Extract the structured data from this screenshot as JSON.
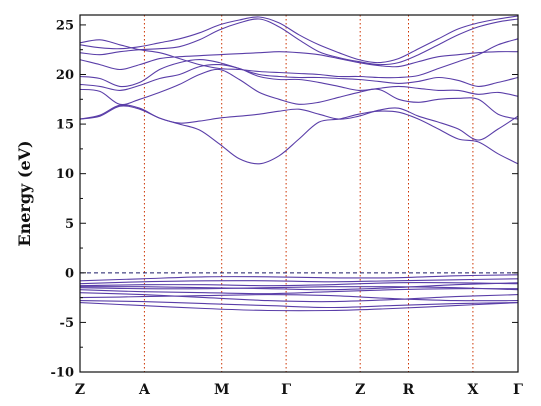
{
  "chart_data": {
    "type": "line",
    "title": "",
    "ylabel": "Energy (eV)",
    "xlabel": "",
    "ylim": [
      -10,
      26
    ],
    "yticks": [
      -10,
      -5,
      0,
      5,
      10,
      15,
      20,
      25
    ],
    "fermi_level": 0,
    "grid": false,
    "k_points": [
      "Z",
      "A",
      "M",
      "Γ",
      "Z",
      "R",
      "X",
      "Γ"
    ],
    "k_positions": [
      0,
      1,
      2.2,
      3.2,
      4.35,
      5.1,
      6.1,
      6.8
    ],
    "series": [
      {
        "values": [
          -3.0,
          -3.3,
          -3.6,
          -3.8,
          -3.8,
          -3.6,
          -3.3,
          -3.0
        ]
      },
      {
        "values": [
          -2.8,
          -2.9,
          -3.1,
          -3.3,
          -3.5,
          -3.3,
          -3.1,
          -3.0
        ]
      },
      {
        "values": [
          -2.5,
          -2.4,
          -2.3,
          -2.2,
          -2.3,
          -2.6,
          -2.8,
          -2.8
        ]
      },
      {
        "values": [
          -2.0,
          -2.2,
          -2.5,
          -2.8,
          -2.9,
          -2.7,
          -2.4,
          -2.2
        ]
      },
      {
        "values": [
          -1.7,
          -1.9,
          -2.0,
          -2.1,
          -1.9,
          -1.7,
          -1.6,
          -1.6
        ]
      },
      {
        "values": [
          -1.5,
          -1.6,
          -1.6,
          -1.5,
          -1.4,
          -1.4,
          -1.5,
          -1.7
        ]
      },
      {
        "values": [
          -1.3,
          -1.2,
          -1.2,
          -1.3,
          -1.2,
          -1.0,
          -1.0,
          -1.1
        ]
      },
      {
        "values": [
          -1.1,
          -0.9,
          -0.8,
          -0.8,
          -0.9,
          -0.8,
          -0.7,
          -0.6
        ]
      },
      {
        "values": [
          -0.8,
          -0.6,
          -0.4,
          -0.4,
          -0.5,
          -0.5,
          -0.3,
          -0.2
        ]
      },
      {
        "values": [
          -1.4,
          -1.4,
          -1.5,
          -1.6,
          -1.7,
          -1.5,
          -1.2,
          -1.0
        ]
      },
      {
        "values": [
          15.5,
          15.8,
          16.8,
          16.5,
          15.6,
          15.0,
          14.4,
          13.0,
          11.5,
          11.0,
          11.8,
          13.5,
          15.2,
          15.5,
          16.0,
          16.3,
          16.2,
          15.5,
          14.5,
          13.5,
          13.2,
          12.0,
          11.0
        ]
      },
      {
        "values": [
          15.5,
          15.9,
          16.9,
          16.6,
          15.6,
          15.1,
          15.3,
          15.6,
          15.8,
          16.0,
          16.3,
          16.5,
          16.0,
          15.5,
          15.8,
          16.4,
          16.6,
          15.8,
          15.2,
          14.5,
          13.4,
          14.5,
          15.8
        ]
      },
      {
        "values": [
          18.5,
          18.3,
          17.0,
          17.5,
          18.2,
          19.0,
          20.0,
          20.5,
          19.5,
          18.2,
          17.5,
          17.0,
          17.2,
          17.7,
          18.2,
          18.5,
          17.5,
          17.2,
          17.5,
          17.6,
          17.5,
          16.0,
          15.5
        ]
      },
      {
        "values": [
          19.0,
          18.8,
          18.4,
          18.9,
          19.6,
          20.0,
          20.8,
          21.0,
          20.6,
          19.8,
          19.5,
          19.5,
          19.2,
          18.8,
          18.4,
          18.6,
          18.8,
          18.6,
          18.4,
          18.4,
          18.0,
          18.2,
          17.8
        ]
      },
      {
        "values": [
          19.8,
          19.6,
          18.8,
          19.2,
          20.5,
          21.2,
          21.5,
          21.2,
          20.6,
          20.0,
          19.8,
          19.7,
          19.7,
          19.6,
          19.5,
          19.3,
          19.1,
          19.3,
          19.7,
          19.4,
          18.8,
          19.2,
          19.7
        ]
      },
      {
        "values": [
          21.5,
          21.0,
          20.5,
          21.0,
          21.6,
          21.8,
          21.9,
          22.0,
          22.1,
          22.2,
          22.3,
          22.2,
          22.0,
          21.6,
          21.2,
          20.9,
          20.8,
          21.3,
          21.8,
          22.0,
          22.2,
          22.3,
          22.3
        ]
      },
      {
        "values": [
          22.2,
          22.0,
          22.3,
          22.5,
          22.6,
          22.8,
          23.5,
          24.5,
          25.2,
          25.6,
          24.8,
          23.5,
          22.3,
          21.7,
          21.3,
          21.0,
          21.2,
          22.0,
          23.0,
          24.0,
          24.8,
          25.3,
          25.6
        ]
      },
      {
        "values": [
          23.0,
          22.7,
          22.6,
          22.8,
          23.2,
          23.6,
          24.2,
          25.0,
          25.5,
          25.8,
          25.2,
          24.0,
          23.0,
          22.2,
          21.5,
          21.2,
          21.6,
          22.6,
          23.6,
          24.6,
          25.2,
          25.6,
          25.9
        ]
      },
      {
        "values": [
          23.2,
          23.5,
          23.0,
          22.5,
          22.2,
          21.6,
          21.0,
          20.6,
          20.5,
          20.3,
          20.2,
          20.1,
          20.0,
          19.8,
          19.8,
          19.7,
          19.7,
          19.9,
          20.6,
          21.3,
          22.0,
          23.0,
          23.6
        ]
      }
    ]
  }
}
